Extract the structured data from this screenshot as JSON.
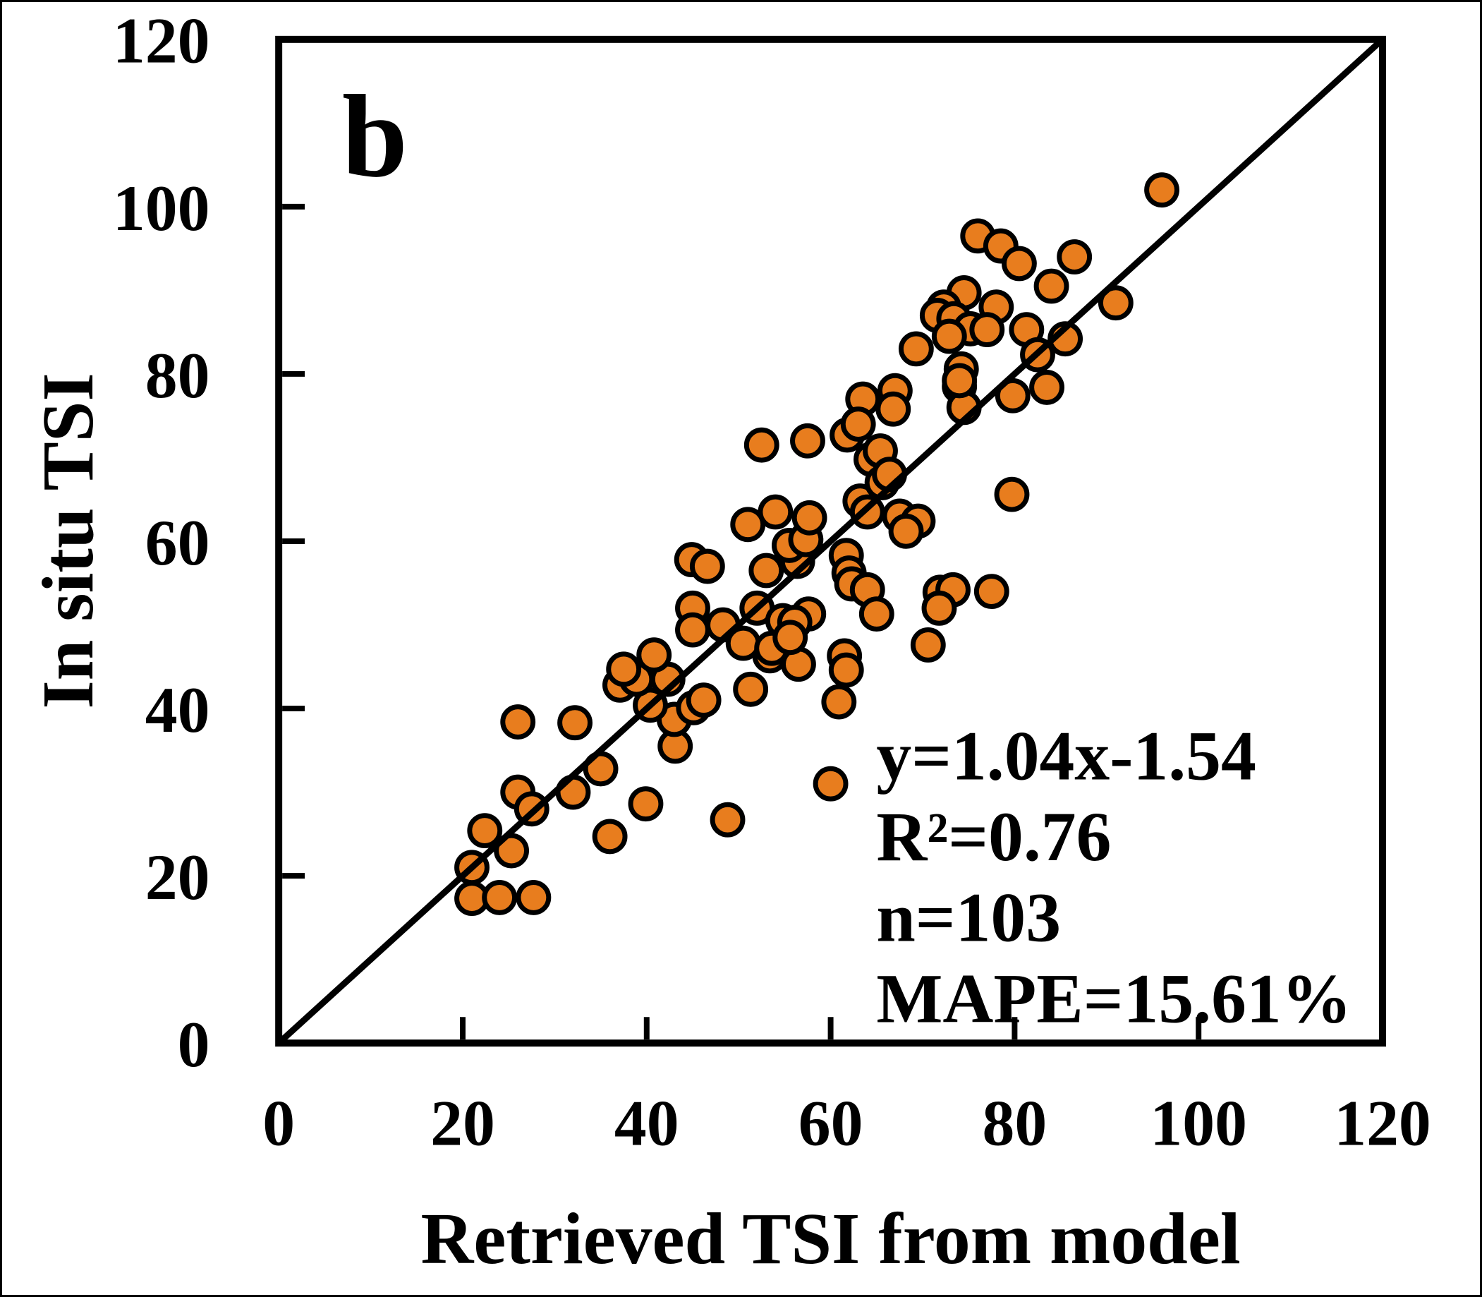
{
  "chart_data": {
    "type": "scatter",
    "panel_label": "b",
    "xlabel": "Retrieved TSI from model",
    "ylabel": "In situ TSI",
    "xlim": [
      0,
      120
    ],
    "ylim": [
      0,
      120
    ],
    "x_ticks": [
      0,
      20,
      40,
      60,
      80,
      100,
      120
    ],
    "y_ticks": [
      0,
      20,
      40,
      60,
      80,
      100,
      120
    ],
    "grid": false,
    "legend": "none",
    "identity_line": {
      "from": [
        0,
        0
      ],
      "to": [
        120,
        120
      ]
    },
    "annotation": {
      "lines": [
        "y=1.04x-1.54",
        "R²=0.76",
        "n=103",
        "MAPE=15.61%"
      ]
    },
    "stats": {
      "slope": 1.04,
      "intercept": -1.54,
      "r_squared": 0.76,
      "n": 103,
      "mape_percent": 15.61
    },
    "marker": {
      "shape": "circle",
      "fill": "#E87D1E",
      "stroke": "#000000"
    },
    "axis_color": "#000000",
    "background_color": "#FFFFFF",
    "points": [
      [
        21,
        17.3
      ],
      [
        24,
        17.4
      ],
      [
        27.7,
        17.4
      ],
      [
        21,
        21
      ],
      [
        22.4,
        25.4
      ],
      [
        25.3,
        23
      ],
      [
        26,
        30
      ],
      [
        27.5,
        28
      ],
      [
        32,
        30
      ],
      [
        35,
        32.8
      ],
      [
        26,
        38.4
      ],
      [
        32.2,
        38.3
      ],
      [
        36,
        24.7
      ],
      [
        39.9,
        28.6
      ],
      [
        48.8,
        26.7
      ],
      [
        60,
        31
      ],
      [
        43.1,
        35.5
      ],
      [
        43,
        38.7
      ],
      [
        45.1,
        40.1
      ],
      [
        46.2,
        41
      ],
      [
        40.4,
        40.4
      ],
      [
        37.1,
        42.8
      ],
      [
        38.9,
        43.5
      ],
      [
        42.3,
        43.5
      ],
      [
        37.5,
        44.7
      ],
      [
        40.8,
        46.4
      ],
      [
        51.3,
        42.3
      ],
      [
        53.4,
        46.3
      ],
      [
        56.5,
        45.3
      ],
      [
        45,
        52
      ],
      [
        45,
        49.4
      ],
      [
        48.3,
        50
      ],
      [
        52,
        52
      ],
      [
        54.8,
        50.5
      ],
      [
        57.6,
        51.3
      ],
      [
        56.1,
        50.3
      ],
      [
        50.5,
        47.8
      ],
      [
        53.6,
        47.2
      ],
      [
        55.6,
        48.5
      ],
      [
        44.9,
        57.8
      ],
      [
        46.6,
        57
      ],
      [
        53,
        56.5
      ],
      [
        56.4,
        57.6
      ],
      [
        55.5,
        59.5
      ],
      [
        57.3,
        60.2
      ],
      [
        61.7,
        58.3
      ],
      [
        62,
        56.2
      ],
      [
        62.3,
        54.9
      ],
      [
        64,
        54.2
      ],
      [
        65,
        51.3
      ],
      [
        61.5,
        46.3
      ],
      [
        61.8,
        72.7
      ],
      [
        63.2,
        64.8
      ],
      [
        64,
        63.5
      ],
      [
        67.5,
        63
      ],
      [
        69.5,
        62.4
      ],
      [
        68.2,
        61.2
      ],
      [
        57.7,
        62.8
      ],
      [
        51,
        62
      ],
      [
        54,
        63.5
      ],
      [
        52.5,
        71.5
      ],
      [
        57.5,
        72
      ],
      [
        64.4,
        69.8
      ],
      [
        65.4,
        70.8
      ],
      [
        65.6,
        67
      ],
      [
        66.4,
        68
      ],
      [
        63.5,
        77
      ],
      [
        67,
        78
      ],
      [
        66.8,
        75.8
      ],
      [
        63,
        74
      ],
      [
        74,
        78.5
      ],
      [
        74.5,
        76
      ],
      [
        79.8,
        77.4
      ],
      [
        79.7,
        65.6
      ],
      [
        71.9,
        53.9
      ],
      [
        73.3,
        54.2
      ],
      [
        77.5,
        54
      ],
      [
        71.8,
        52
      ],
      [
        70.6,
        47.6
      ],
      [
        61.7,
        44.6
      ],
      [
        60.9,
        40.8
      ],
      [
        96,
        102
      ],
      [
        76,
        96.5
      ],
      [
        78.5,
        95.3
      ],
      [
        80.5,
        93.2
      ],
      [
        86.5,
        94
      ],
      [
        84,
        90.5
      ],
      [
        91,
        88.5
      ],
      [
        74.5,
        89.7
      ],
      [
        72.3,
        88
      ],
      [
        71.6,
        87
      ],
      [
        73.4,
        86.6
      ],
      [
        75.2,
        85.4
      ],
      [
        72.9,
        84.5
      ],
      [
        78,
        88
      ],
      [
        77,
        85.3
      ],
      [
        81.3,
        85.3
      ],
      [
        85.5,
        84.2
      ],
      [
        82.5,
        82.3
      ],
      [
        69.3,
        83
      ],
      [
        74.2,
        80.6
      ],
      [
        74,
        79.2
      ],
      [
        83.5,
        78.4
      ]
    ]
  }
}
